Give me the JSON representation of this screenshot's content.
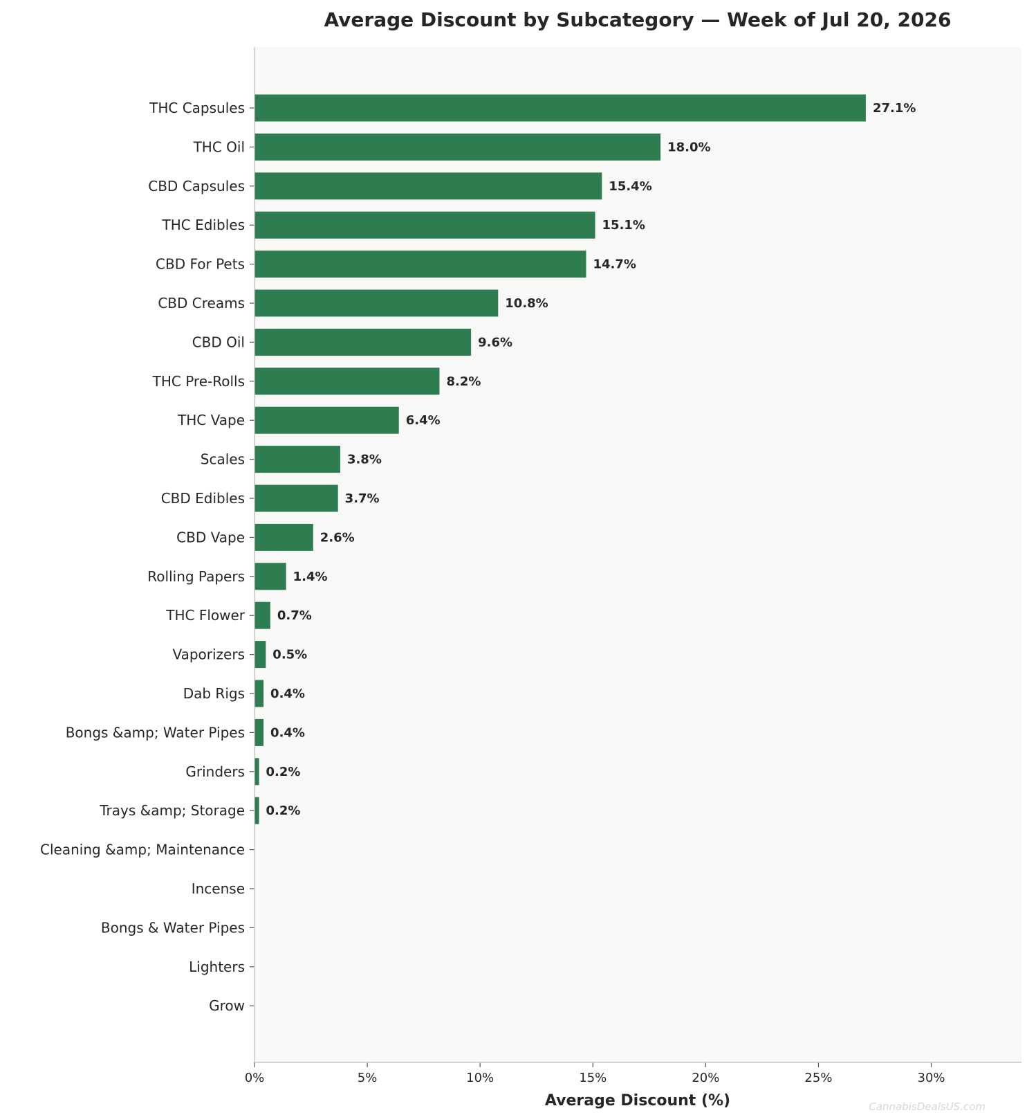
{
  "chart_data": {
    "type": "bar",
    "orientation": "horizontal",
    "title": "Average Discount by Subcategory — Week of Jul 20, 2026",
    "xlabel": "Average Discount (%)",
    "ylabel": "",
    "xlim": [
      0,
      34
    ],
    "xticks": [
      0,
      5,
      10,
      15,
      20,
      25,
      30
    ],
    "xtick_labels": [
      "0%",
      "5%",
      "10%",
      "15%",
      "20%",
      "25%",
      "30%"
    ],
    "grid": false,
    "categories": [
      "THC Capsules",
      "THC Oil",
      "CBD Capsules",
      "THC Edibles",
      "CBD For Pets",
      "CBD Creams",
      "CBD Oil",
      "THC Pre-Rolls",
      "THC Vape",
      "Scales",
      "CBD Edibles",
      "CBD Vape",
      "Rolling Papers",
      "THC Flower",
      "Vaporizers",
      "Dab Rigs",
      "Bongs &amp; Water Pipes",
      "Grinders",
      "Trays &amp; Storage",
      "Cleaning &amp; Maintenance",
      "Incense",
      "Bongs & Water Pipes",
      "Lighters",
      "Grow"
    ],
    "values": [
      27.1,
      18.0,
      15.4,
      15.1,
      14.7,
      10.8,
      9.6,
      8.2,
      6.4,
      3.8,
      3.7,
      2.6,
      1.4,
      0.7,
      0.5,
      0.4,
      0.4,
      0.2,
      0.2,
      0,
      0,
      0,
      0,
      0
    ],
    "value_labels": [
      "27.1%",
      "18.0%",
      "15.4%",
      "15.1%",
      "14.7%",
      "10.8%",
      "9.6%",
      "8.2%",
      "6.4%",
      "3.8%",
      "3.7%",
      "2.6%",
      "1.4%",
      "0.7%",
      "0.5%",
      "0.4%",
      "0.4%",
      "0.2%",
      "0.2%",
      "",
      "",
      "",
      "",
      ""
    ],
    "bar_color": "#2e7d50",
    "plot_background": "#f8f8f6",
    "watermark": "CannabisDealsUS.com"
  }
}
